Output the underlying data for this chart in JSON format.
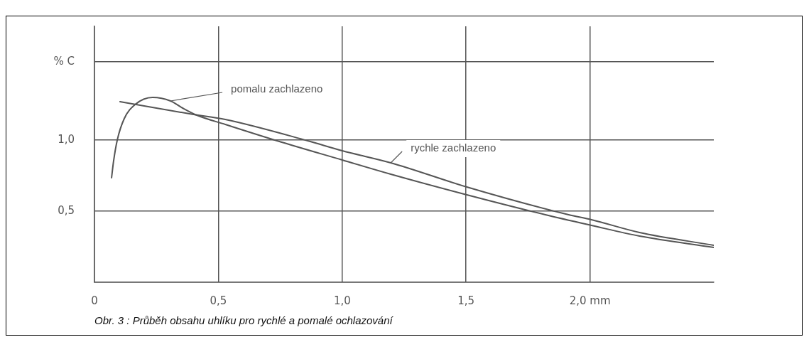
{
  "chart_data": {
    "type": "line",
    "ylabel": "% C",
    "xlim": [
      0,
      2.5
    ],
    "ylim": [
      0,
      1.8
    ],
    "xticks": [
      0,
      {
        "value": 0.5,
        "label": "0,5"
      },
      {
        "value": 1,
        "label": "1,0"
      },
      {
        "value": 1.5,
        "label": "1,5"
      },
      {
        "value": 2,
        "label": "2,0 mm"
      }
    ],
    "yticks": [
      {
        "value": 0,
        "label": null
      },
      {
        "value": 0.5,
        "label": "0,5"
      },
      {
        "value": 1,
        "label": "1,0"
      },
      {
        "value": 1.55,
        "label": null
      }
    ],
    "grid": true,
    "legend": false,
    "marker": "none",
    "line_style": "solid",
    "series": [
      {
        "name": "pomalu zachlazeno",
        "color": "#555555",
        "x": [
          0.069,
          0.077,
          0.092,
          0.12,
          0.164,
          0.235,
          0.307,
          0.356,
          0.413,
          0.528,
          0.737,
          1.0,
          1.196,
          1.503,
          1.82,
          2.006,
          2.2,
          2.5
        ],
        "values": [
          0.735,
          0.85,
          1.0,
          1.15,
          1.25,
          1.3,
          1.275,
          1.225,
          1.175,
          1.11,
          0.995,
          0.86,
          0.76,
          0.615,
          0.475,
          0.4,
          0.325,
          0.245
        ]
      },
      {
        "name": "rychle zachlazeno",
        "color": "#555555",
        "x": [
          0.103,
          0.4,
          0.528,
          0.861,
          1.0,
          1.196,
          1.503,
          1.914,
          2.006,
          2.2,
          2.5
        ],
        "values": [
          1.27,
          1.18,
          1.145,
          0.995,
          0.925,
          0.84,
          0.67,
          0.475,
          0.44,
          0.35,
          0.26
        ]
      }
    ],
    "annotations": [
      "Obr. 3 : Průběh obsahu uhlíku pro rychlé a pomalé ochlazování"
    ]
  }
}
